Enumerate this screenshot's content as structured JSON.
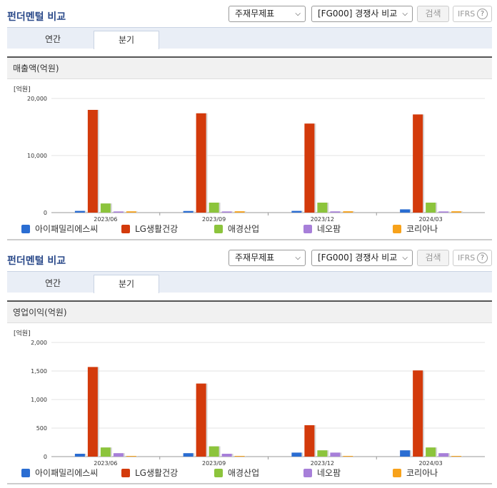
{
  "header": {
    "title": "펀더멘털 비교",
    "statement_select": "주재무제표",
    "compare_select": "[FG000] 경쟁사 비교",
    "search_label": "검색",
    "ifrs_label": "IFRS",
    "help_glyph": "?"
  },
  "tabs": [
    "연간",
    "분기"
  ],
  "active_tab": "분기",
  "colors": {
    "아이패밀리에스씨": "#2a6dd2",
    "LG생활건강": "#d33a0b",
    "애경산업": "#8cc43c",
    "네오팜": "#a77fd9",
    "코리아나": "#f7a21b"
  },
  "chart_data": [
    {
      "type": "bar",
      "title": "매출액(억원)",
      "unit_label": "[억원]",
      "categories": [
        "2023/06",
        "2023/09",
        "2023/12",
        "2024/03"
      ],
      "ylim": [
        0,
        20000
      ],
      "yticks": [
        "0",
        "10,000",
        "20,000"
      ],
      "ytick_values": [
        0,
        10000,
        20000
      ],
      "grid": true,
      "series": [
        {
          "name": "아이패밀리에스씨",
          "values": [
            300,
            280,
            300,
            570
          ]
        },
        {
          "name": "LG생활건강",
          "values": [
            18000,
            17400,
            15600,
            17200
          ]
        },
        {
          "name": "애경산업",
          "values": [
            1600,
            1750,
            1750,
            1750
          ]
        },
        {
          "name": "네오팜",
          "values": [
            200,
            200,
            210,
            200
          ]
        },
        {
          "name": "코리아나",
          "values": [
            220,
            230,
            230,
            230
          ]
        }
      ]
    },
    {
      "type": "bar",
      "title": "영업이익(억원)",
      "unit_label": "[억원]",
      "categories": [
        "2023/06",
        "2023/09",
        "2023/12",
        "2024/03"
      ],
      "ylim": [
        0,
        2000
      ],
      "yticks": [
        "0",
        "500",
        "1,000",
        "1,500",
        "2,000"
      ],
      "ytick_values": [
        0,
        500,
        1000,
        1500,
        2000
      ],
      "grid": true,
      "series": [
        {
          "name": "아이패밀리에스씨",
          "values": [
            50,
            60,
            70,
            110
          ]
        },
        {
          "name": "LG생활건강",
          "values": [
            1570,
            1280,
            550,
            1510
          ]
        },
        {
          "name": "애경산업",
          "values": [
            160,
            180,
            110,
            160
          ]
        },
        {
          "name": "네오팜",
          "values": [
            60,
            50,
            70,
            60
          ]
        },
        {
          "name": "코리아나",
          "values": [
            5,
            5,
            5,
            5
          ]
        }
      ]
    }
  ]
}
